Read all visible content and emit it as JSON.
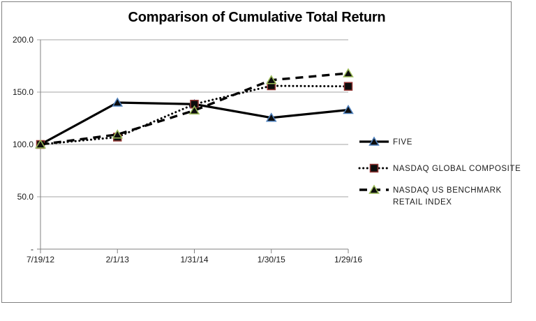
{
  "chart_data": {
    "type": "line",
    "title": "Comparison of Cumulative Total Return",
    "categories": [
      "7/19/12",
      "2/1/13",
      "1/31/14",
      "1/30/15",
      "1/29/16"
    ],
    "y_ticks": [
      {
        "label": "200.0",
        "value": 200
      },
      {
        "label": "150.0",
        "value": 150
      },
      {
        "label": "100.0",
        "value": 100
      },
      {
        "label": "50.0",
        "value": 50
      },
      {
        "label": "-",
        "value": 0
      }
    ],
    "ylim": [
      0,
      200
    ],
    "grid": true,
    "legend_position": "right",
    "series": [
      {
        "name": "FIVE",
        "label_lines": [
          "FIVE"
        ],
        "values": [
          100.0,
          140.0,
          138.5,
          125.5,
          133.0
        ],
        "line_style": "solid",
        "line_color": "#000000",
        "marker": "triangle",
        "marker_stroke": "#4F81BD",
        "marker_fill": "#0d0d0d"
      },
      {
        "name": "NASDAQ GLOBAL COMPOSITE",
        "label_lines": [
          "NASDAQ GLOBAL COMPOSITE"
        ],
        "values": [
          100.0,
          107.0,
          138.5,
          156.0,
          155.5
        ],
        "line_style": "dotted",
        "line_color": "#000000",
        "marker": "square",
        "marker_stroke": "#943634",
        "marker_fill": "#0d0d0d"
      },
      {
        "name": "NASDAQ US BENCHMARK RETAIL INDEX",
        "label_lines": [
          "NASDAQ US BENCHMARK",
          "RETAIL INDEX"
        ],
        "values": [
          100.0,
          109.5,
          132.5,
          161.5,
          168.0
        ],
        "line_style": "dashed",
        "line_color": "#000000",
        "marker": "triangle",
        "marker_stroke": "#9BBB59",
        "marker_fill": "#0d0d0d"
      }
    ],
    "colors": {
      "gridline": "#A6A6A6",
      "axis": "#808080",
      "frame_border": "#808080",
      "text": "#1a1a1a",
      "background": "#ffffff"
    }
  }
}
